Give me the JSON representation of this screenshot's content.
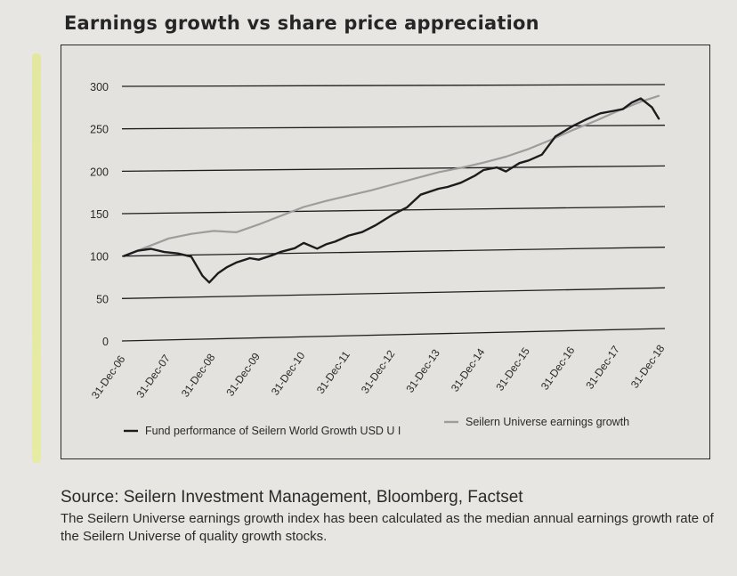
{
  "title": "Earnings growth vs share price appreciation",
  "source": "Source: Seilern Investment Management, Bloomberg, Factset",
  "note": "The Seilern Universe earnings growth index has been calculated as the median annual earnings growth rate of the Seilern Universe of quality growth stocks.",
  "colors": {
    "fund": "#1c1c1c",
    "earnings": "#9d9d9d",
    "grid": "#1f1f1f",
    "panel_bg": "#e3e2de"
  },
  "chart_data": {
    "type": "line",
    "title": "Earnings growth vs share price appreciation",
    "xlabel": "",
    "ylabel": "",
    "ylim": [
      0,
      300
    ],
    "yticks": [
      0,
      50,
      100,
      150,
      200,
      250,
      300
    ],
    "xlim": [
      2006.997,
      2018.997
    ],
    "x_tick_labels": [
      "31-Dec-06",
      "31-Dec-07",
      "31-Dec-08",
      "31-Dec-09",
      "31-Dec-10",
      "31-Dec-11",
      "31-Dec-12",
      "31-Dec-13",
      "31-Dec-14",
      "31-Dec-15",
      "31-Dec-16",
      "31-Dec-17",
      "31-Dec-18"
    ],
    "x_tick_values": [
      2006.997,
      2007.997,
      2008.997,
      2009.997,
      2010.997,
      2011.997,
      2012.997,
      2013.997,
      2014.997,
      2015.997,
      2016.997,
      2017.997,
      2018.997
    ],
    "grid": true,
    "legend_position": "bottom",
    "series": [
      {
        "name": "Fund performance of Seilern World Growth USD U I",
        "color": "#1c1c1c",
        "x": [
          2007.0,
          2007.3,
          2007.6,
          2007.9,
          2008.2,
          2008.5,
          2008.75,
          2008.9,
          2009.1,
          2009.3,
          2009.5,
          2009.8,
          2010.0,
          2010.3,
          2010.5,
          2010.8,
          2011.0,
          2011.3,
          2011.5,
          2011.7,
          2012.0,
          2012.3,
          2012.6,
          2013.0,
          2013.3,
          2013.6,
          2014.0,
          2014.2,
          2014.5,
          2014.8,
          2015.0,
          2015.3,
          2015.5,
          2015.8,
          2016.0,
          2016.3,
          2016.6,
          2017.0,
          2017.3,
          2017.6,
          2017.9,
          2018.1,
          2018.3,
          2018.5,
          2018.75,
          2018.9
        ],
        "y": [
          100,
          106,
          108,
          104,
          102,
          98,
          75,
          67,
          78,
          85,
          90,
          95,
          93,
          98,
          102,
          106,
          112,
          105,
          110,
          113,
          120,
          124,
          132,
          145,
          153,
          168,
          175,
          177,
          182,
          190,
          197,
          200,
          195,
          205,
          208,
          215,
          237,
          250,
          258,
          265,
          268,
          270,
          278,
          283,
          272,
          258
        ]
      },
      {
        "name": "Seilern Universe earnings growth",
        "color": "#9d9d9d",
        "x": [
          2007.0,
          2007.5,
          2008.0,
          2008.5,
          2009.0,
          2009.5,
          2010.0,
          2010.5,
          2011.0,
          2011.5,
          2012.0,
          2012.5,
          2013.0,
          2013.5,
          2014.0,
          2014.5,
          2015.0,
          2015.5,
          2016.0,
          2016.5,
          2017.0,
          2017.5,
          2018.0,
          2018.5,
          2018.9
        ],
        "y": [
          100,
          110,
          120,
          125,
          128,
          126,
          135,
          145,
          155,
          162,
          168,
          174,
          181,
          188,
          195,
          200,
          206,
          213,
          222,
          233,
          245,
          256,
          268,
          279,
          286
        ]
      }
    ]
  }
}
